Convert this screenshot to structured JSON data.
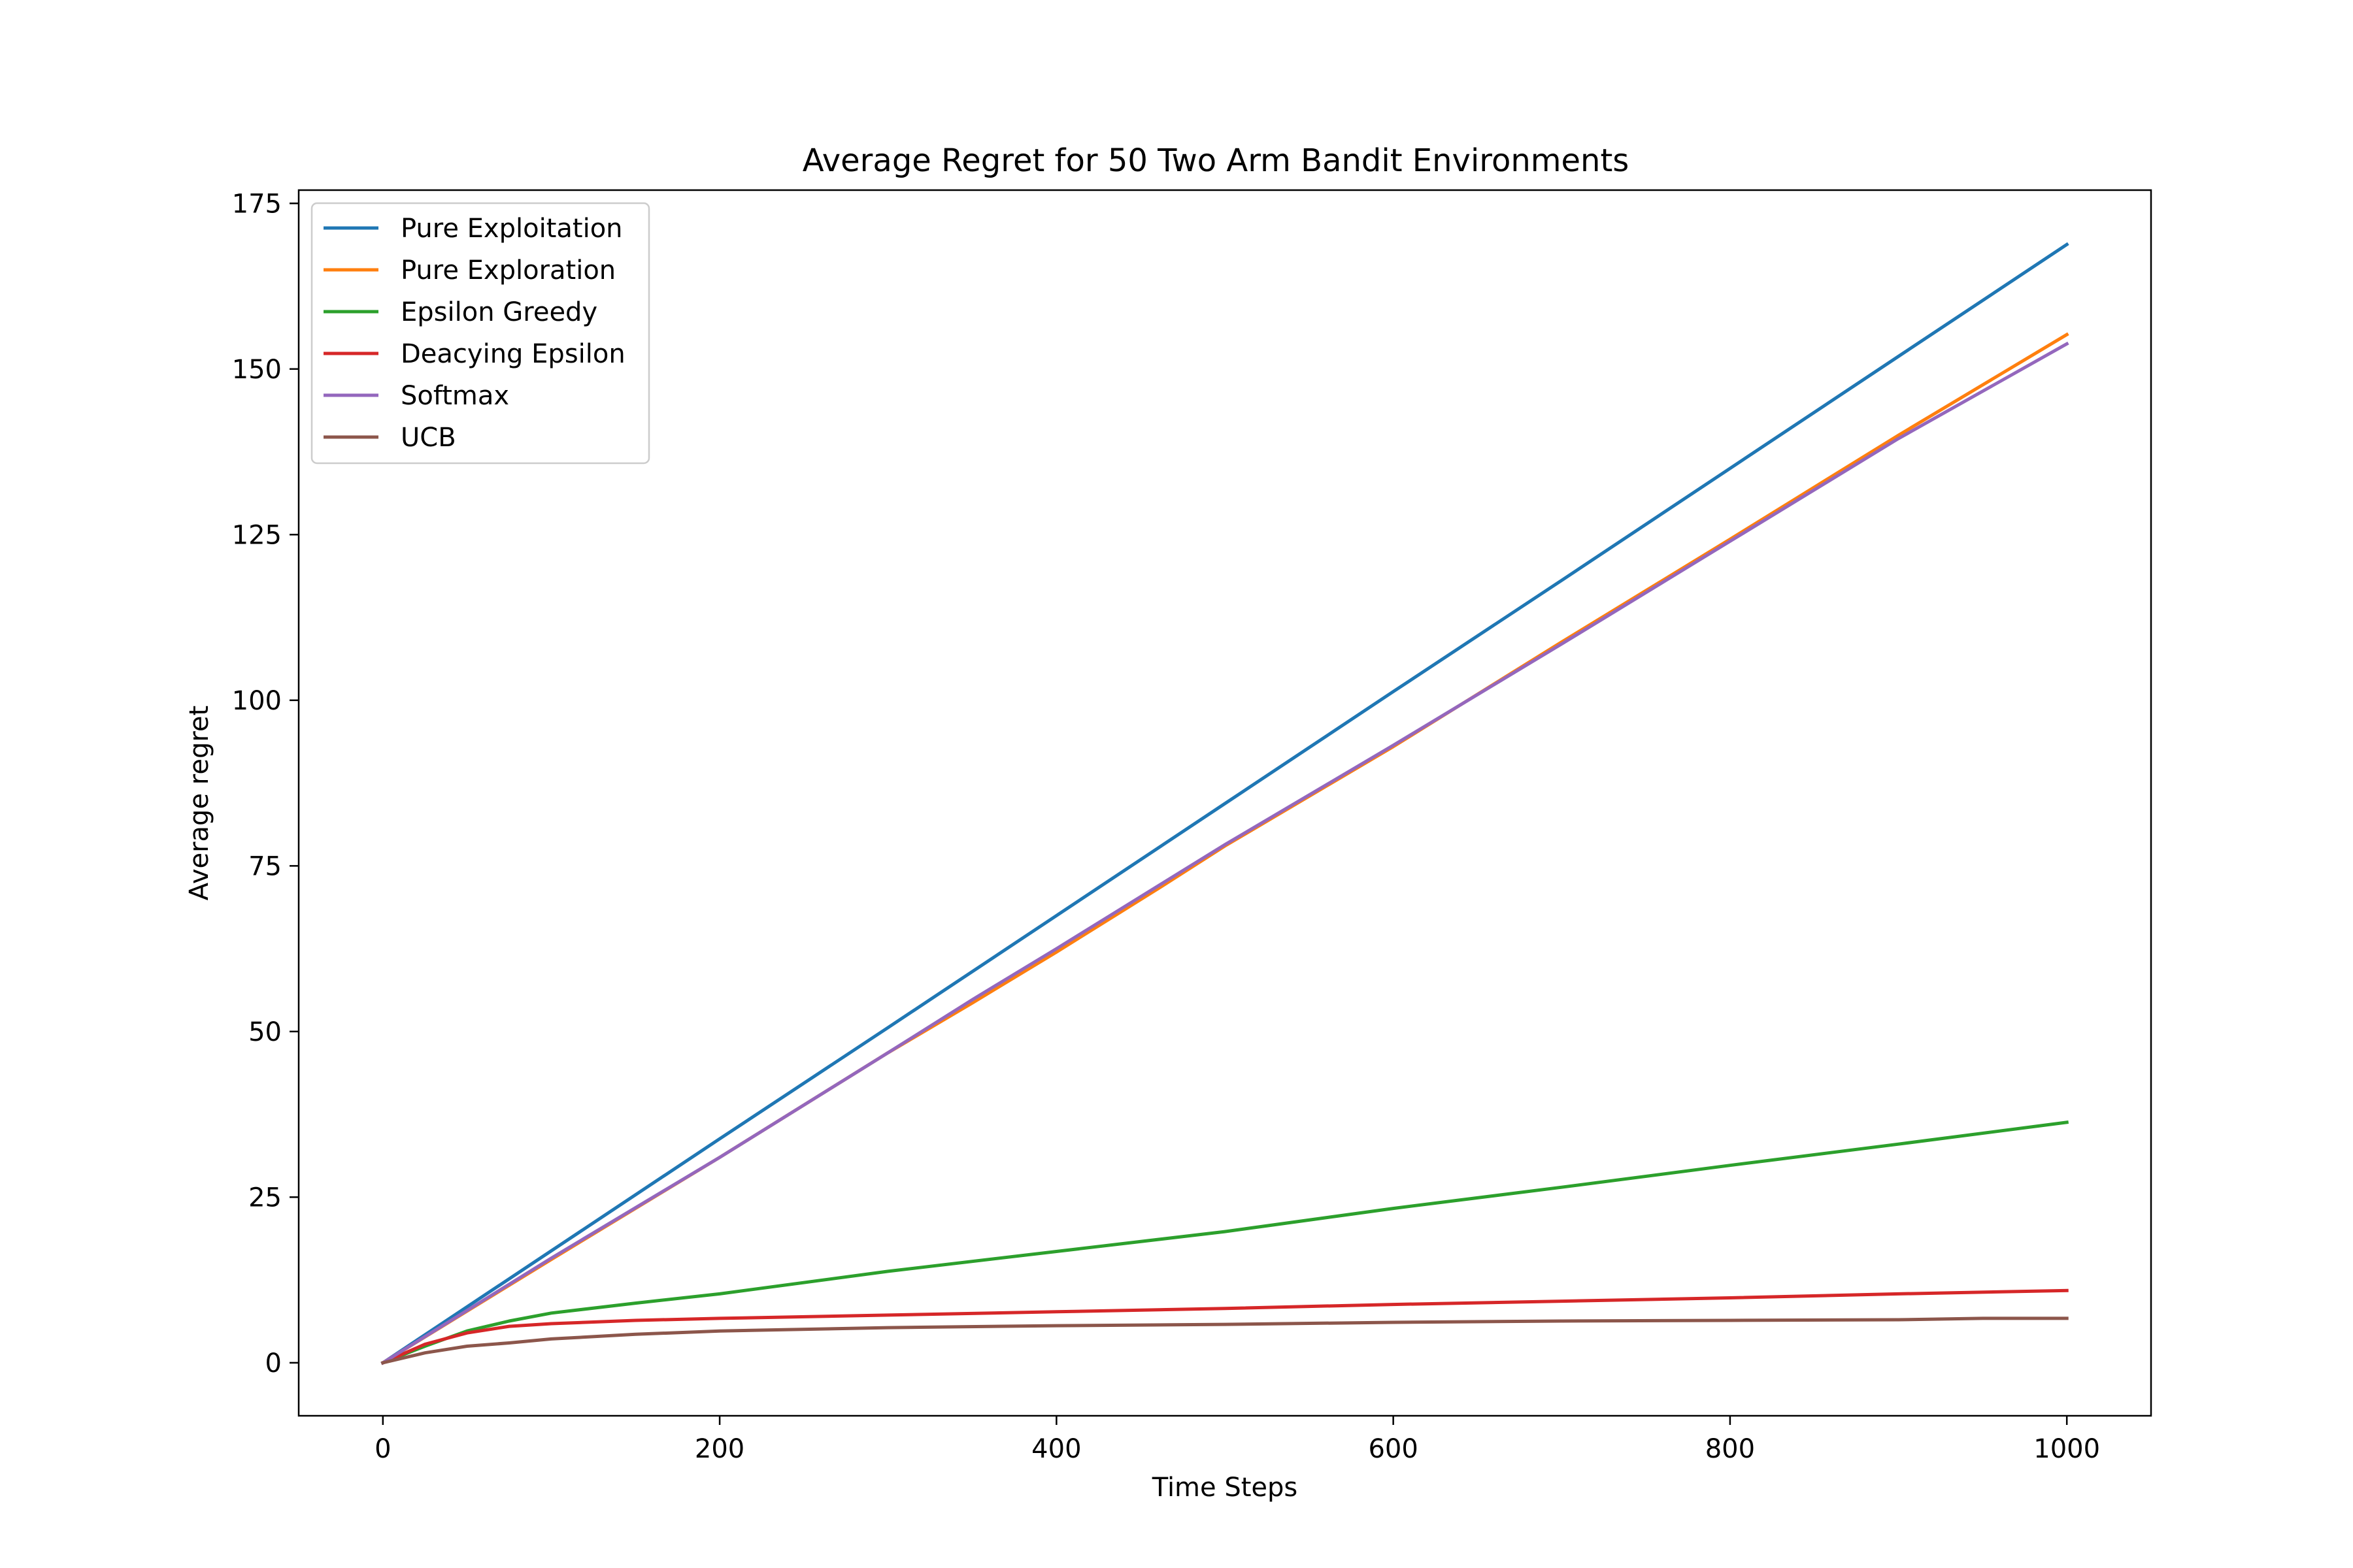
{
  "chart_data": {
    "type": "line",
    "title": "Average Regret for 50 Two Arm Bandit Environments",
    "xlabel": "Time Steps",
    "ylabel": "Average regret",
    "xlim": [
      -50,
      1050
    ],
    "ylim": [
      -8,
      177
    ],
    "xticks": [
      0,
      200,
      400,
      600,
      800,
      1000
    ],
    "yticks": [
      0,
      25,
      50,
      75,
      100,
      125,
      150,
      175
    ],
    "grid": false,
    "legend": "top-left",
    "series": [
      {
        "name": "Pure Exploitation",
        "color": "#1f77b4",
        "x": [
          0,
          100,
          200,
          300,
          400,
          500,
          600,
          700,
          800,
          900,
          1000
        ],
        "y": [
          0,
          16.9,
          33.8,
          50.6,
          67.5,
          84.4,
          101.3,
          118.1,
          135.0,
          151.9,
          168.8
        ]
      },
      {
        "name": "Pure Exploration",
        "color": "#ff7f0e",
        "x": [
          0,
          100,
          200,
          300,
          350,
          400,
          460,
          500,
          600,
          700,
          800,
          900,
          1000
        ],
        "y": [
          0,
          15.6,
          31.0,
          46.8,
          54.3,
          62.0,
          71.5,
          78.0,
          93.0,
          108.8,
          124.3,
          140.0,
          155.2
        ]
      },
      {
        "name": "Epsilon Greedy",
        "color": "#2ca02c",
        "x": [
          0,
          25,
          50,
          75,
          100,
          150,
          200,
          300,
          400,
          500,
          600,
          700,
          800,
          900,
          1000
        ],
        "y": [
          0,
          2.5,
          4.8,
          6.3,
          7.5,
          9.0,
          10.4,
          13.8,
          16.8,
          19.8,
          23.3,
          26.5,
          29.8,
          33.0,
          36.3
        ]
      },
      {
        "name": "Deacying Epsilon",
        "color": "#d62728",
        "x": [
          0,
          25,
          50,
          75,
          100,
          150,
          200,
          300,
          400,
          500,
          600,
          700,
          800,
          900,
          1000
        ],
        "y": [
          0,
          2.8,
          4.5,
          5.5,
          5.9,
          6.4,
          6.7,
          7.2,
          7.7,
          8.2,
          8.8,
          9.3,
          9.8,
          10.4,
          10.9
        ]
      },
      {
        "name": "Softmax",
        "color": "#9467bd",
        "x": [
          0,
          100,
          200,
          300,
          350,
          400,
          500,
          600,
          700,
          800,
          900,
          1000
        ],
        "y": [
          0,
          15.8,
          31.0,
          46.8,
          54.8,
          62.5,
          78.2,
          93.2,
          108.5,
          124.0,
          139.5,
          153.8
        ]
      },
      {
        "name": "UCB",
        "color": "#8c564b",
        "x": [
          0,
          25,
          50,
          75,
          100,
          150,
          200,
          300,
          400,
          500,
          600,
          700,
          800,
          900,
          950,
          1000
        ],
        "y": [
          0,
          1.5,
          2.5,
          3.0,
          3.6,
          4.3,
          4.8,
          5.3,
          5.6,
          5.8,
          6.1,
          6.3,
          6.4,
          6.5,
          6.7,
          6.7
        ]
      }
    ]
  }
}
